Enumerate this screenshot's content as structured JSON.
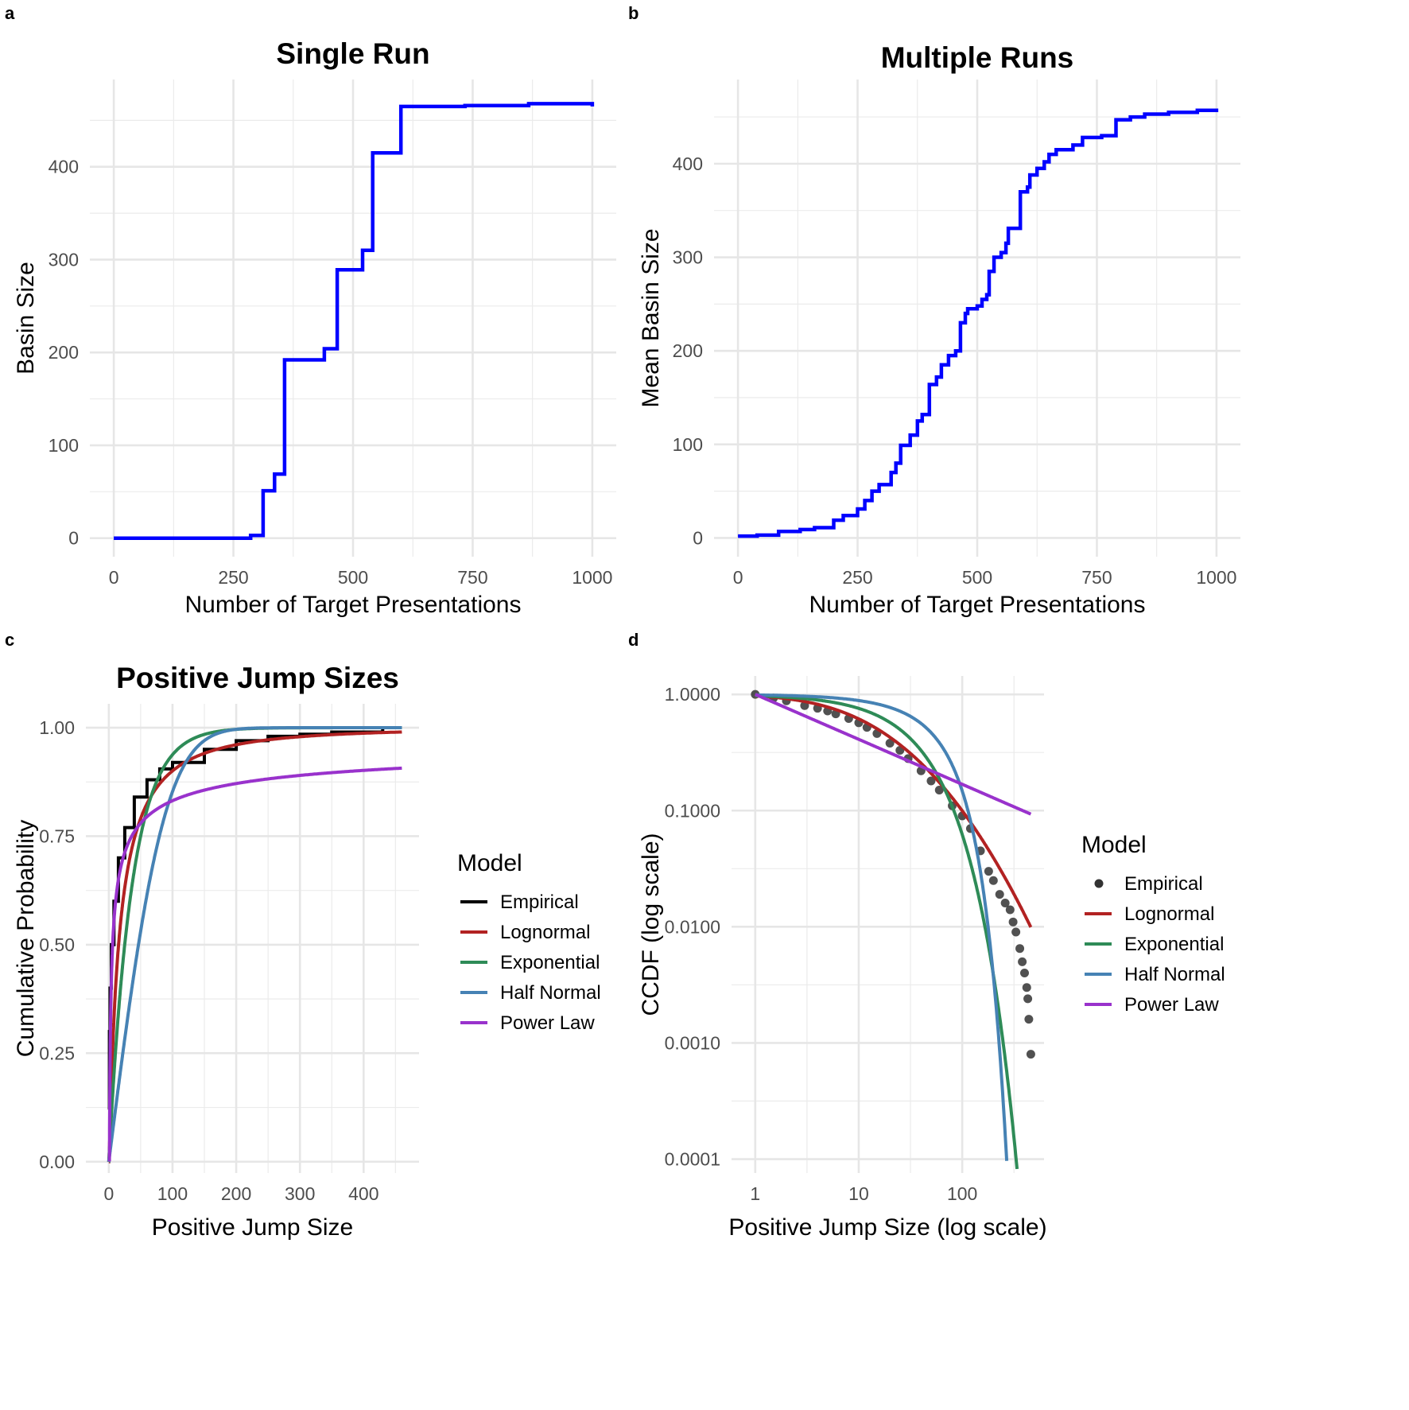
{
  "panel_labels": [
    "a",
    "b",
    "c",
    "d"
  ],
  "chart_data": [
    {
      "id": "a",
      "type": "line",
      "title": "Single Run",
      "xlabel": "Number of Target Presentations",
      "ylabel": "Basin Size",
      "x_ticks": [
        0,
        250,
        500,
        750,
        1000
      ],
      "x_tick_labels": [
        "0",
        "250",
        "500",
        "750",
        "1000"
      ],
      "y_ticks": [
        0,
        100,
        200,
        300,
        400
      ],
      "y_tick_labels": [
        "0",
        "100",
        "200",
        "300",
        "400"
      ],
      "xlim": [
        -50,
        1050
      ],
      "ylim": [
        -20,
        494
      ],
      "grid": true,
      "color": "#0000FF",
      "step": true,
      "series": [
        {
          "name": "Basin Size",
          "x": [
            0,
            286,
            312,
            336,
            357,
            440,
            467,
            520,
            541,
            600,
            734,
            867,
            995,
            1000
          ],
          "y": [
            0,
            3,
            51,
            69,
            192,
            204,
            289,
            310,
            415,
            465,
            466,
            468,
            468,
            465
          ]
        }
      ]
    },
    {
      "id": "b",
      "type": "line",
      "title": "Multiple Runs",
      "xlabel": "Number of Target Presentations",
      "ylabel": "Mean Basin Size",
      "x_ticks": [
        0,
        250,
        500,
        750,
        1000
      ],
      "x_tick_labels": [
        "0",
        "250",
        "500",
        "750",
        "1000"
      ],
      "y_ticks": [
        0,
        100,
        200,
        300,
        400
      ],
      "y_tick_labels": [
        "0",
        "100",
        "200",
        "300",
        "400"
      ],
      "xlim": [
        -50,
        1050
      ],
      "ylim": [
        -20,
        490
      ],
      "grid": true,
      "color": "#0000FF",
      "step": true,
      "series": [
        {
          "name": "Mean Basin Size",
          "x": [
            0,
            40,
            85,
            130,
            160,
            200,
            220,
            250,
            265,
            280,
            295,
            320,
            330,
            340,
            360,
            375,
            385,
            400,
            415,
            425,
            440,
            455,
            465,
            475,
            480,
            500,
            510,
            520,
            525,
            535,
            550,
            560,
            565,
            590,
            605,
            610,
            625,
            640,
            650,
            665,
            700,
            720,
            760,
            790,
            820,
            850,
            900,
            960,
            1000
          ],
          "y": [
            2,
            3,
            7,
            9,
            11,
            19,
            24,
            31,
            40,
            50,
            57,
            70,
            80,
            99,
            110,
            125,
            132,
            164,
            172,
            185,
            195,
            200,
            230,
            240,
            245,
            248,
            255,
            260,
            285,
            300,
            305,
            315,
            331,
            370,
            375,
            388,
            395,
            402,
            410,
            415,
            420,
            428,
            430,
            447,
            450,
            453,
            455,
            457,
            459
          ]
        }
      ]
    },
    {
      "id": "c",
      "type": "line",
      "title": "Positive Jump Sizes",
      "xlabel": "Positive Jump Size",
      "ylabel": "Cumulative Probability",
      "x_ticks": [
        0,
        100,
        200,
        300,
        400
      ],
      "x_tick_labels": [
        "0",
        "100",
        "200",
        "300",
        "400"
      ],
      "y_ticks": [
        0,
        0.25,
        0.5,
        0.75,
        1.0
      ],
      "y_tick_labels": [
        "0.00",
        "0.25",
        "0.50",
        "0.75",
        "1.00"
      ],
      "xlim": [
        -36,
        487
      ],
      "ylim": [
        -0.026,
        1.055
      ],
      "grid": true,
      "legend": {
        "title": "Model",
        "placement": "right",
        "entries": [
          "Empirical",
          "Lognormal",
          "Exponential",
          "Half Normal",
          "Power Law"
        ]
      },
      "colors": {
        "Empirical": "#000000",
        "Lognormal": "#B22222",
        "Exponential": "#2E8B57",
        "Half Normal": "#4682B4",
        "Power Law": "#9932CC"
      },
      "empirical": {
        "x": [
          0,
          1,
          2,
          4,
          8,
          15,
          25,
          40,
          60,
          80,
          100,
          150,
          200,
          250,
          300,
          350,
          430
        ],
        "y": [
          0.12,
          0.3,
          0.4,
          0.5,
          0.6,
          0.7,
          0.77,
          0.84,
          0.88,
          0.905,
          0.92,
          0.95,
          0.97,
          0.98,
          0.985,
          0.99,
          1.0
        ]
      },
      "models": {
        "lognormal": {
          "meanlog": 2.73,
          "sdlog": 1.46
        },
        "exponential": {
          "mean": 36
        },
        "half_normal": {
          "sigma": 69
        },
        "power_law": {
          "xmin": 1,
          "exponent": 1.387
        }
      },
      "x_max": 460
    },
    {
      "id": "d",
      "type": "scatter",
      "title": "",
      "xlabel": "Positive Jump Size (log scale)",
      "ylabel": "CCDF (log scale)",
      "x_scale": "log",
      "y_scale": "log",
      "x_ticks": [
        1,
        10,
        100
      ],
      "x_tick_labels": [
        "1",
        "10",
        "100"
      ],
      "y_ticks": [
        1,
        0.1,
        0.01,
        0.001,
        0.0001
      ],
      "y_tick_labels": [
        "1.0000",
        "0.1000",
        "0.0100",
        "0.0010",
        "0.0001"
      ],
      "xlim": [
        0.59,
        617
      ],
      "ylim": [
        7.6e-05,
        1.44
      ],
      "grid": true,
      "legend": {
        "title": "Model",
        "placement": "right",
        "entries": [
          "Empirical",
          "Lognormal",
          "Exponential",
          "Half Normal",
          "Power Law"
        ]
      },
      "colors": {
        "Empirical": "#333333",
        "Lognormal": "#B22222",
        "Exponential": "#2E8B57",
        "Half Normal": "#4682B4",
        "Power Law": "#9932CC"
      },
      "empirical": {
        "x": [
          1,
          1.5,
          2,
          3,
          4,
          5,
          6,
          8,
          10,
          12,
          15,
          20,
          25,
          30,
          40,
          50,
          60,
          80,
          100,
          120,
          150,
          180,
          200,
          230,
          260,
          290,
          310,
          330,
          360,
          380,
          400,
          420,
          430,
          440,
          460
        ],
        "y": [
          1,
          0.93,
          0.88,
          0.8,
          0.76,
          0.72,
          0.68,
          0.62,
          0.57,
          0.52,
          0.46,
          0.38,
          0.33,
          0.28,
          0.22,
          0.18,
          0.15,
          0.11,
          0.09,
          0.07,
          0.045,
          0.03,
          0.025,
          0.019,
          0.016,
          0.014,
          0.011,
          0.009,
          0.0065,
          0.005,
          0.004,
          0.003,
          0.0024,
          0.0016,
          0.0008
        ]
      },
      "models": {
        "lognormal": {
          "meanlog": 2.73,
          "sdlog": 1.46
        },
        "exponential": {
          "mean": 36
        },
        "half_normal": {
          "sigma": 69
        },
        "power_law": {
          "xmin": 1,
          "exponent": 1.387
        }
      },
      "x_max": 460
    }
  ]
}
